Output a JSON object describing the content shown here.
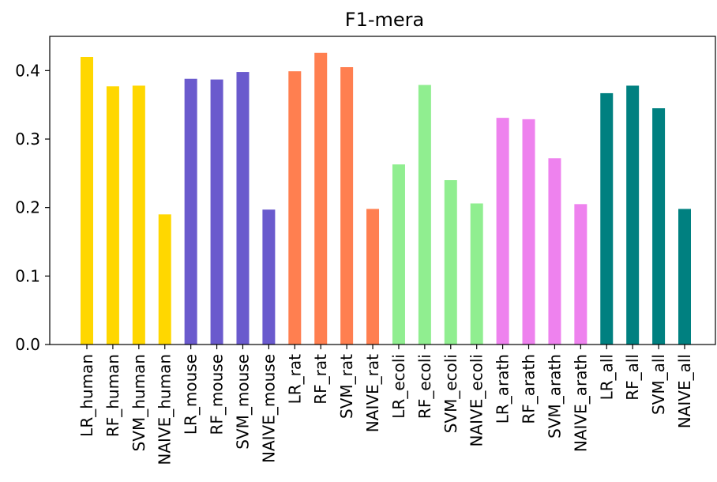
{
  "chart_data": {
    "type": "bar",
    "title": "F1-mera",
    "xlabel": "",
    "ylabel": "",
    "ylim": [
      0,
      0.45
    ],
    "yticks": [
      "0.0",
      "0.1",
      "0.2",
      "0.3",
      "0.4"
    ],
    "ytick_values": [
      0.0,
      0.1,
      0.2,
      0.3,
      0.4
    ],
    "grid": false,
    "categories": [
      "LR_human",
      "RF_human",
      "SVM_human",
      "NAIVE_human",
      "LR_mouse",
      "RF_mouse",
      "SVM_mouse",
      "NAIVE_mouse",
      "LR_rat",
      "RF_rat",
      "SVM_rat",
      "NAIVE_rat",
      "LR_ecoli",
      "RF_ecoli",
      "SVM_ecoli",
      "NAIVE_ecoli",
      "LR_arath",
      "RF_arath",
      "SVM_arath",
      "NAIVE_arath",
      "LR_all",
      "RF_all",
      "SVM_all",
      "NAIVE_all"
    ],
    "values": [
      0.42,
      0.377,
      0.378,
      0.19,
      0.388,
      0.387,
      0.398,
      0.197,
      0.399,
      0.426,
      0.405,
      0.198,
      0.263,
      0.379,
      0.24,
      0.206,
      0.331,
      0.329,
      0.272,
      0.205,
      0.367,
      0.378,
      0.345,
      0.198
    ],
    "colors": [
      "#ffd700",
      "#ffd700",
      "#ffd700",
      "#ffd700",
      "#6a5acd",
      "#6a5acd",
      "#6a5acd",
      "#6a5acd",
      "#ff7f50",
      "#ff7f50",
      "#ff7f50",
      "#ff7f50",
      "#90ee90",
      "#90ee90",
      "#90ee90",
      "#90ee90",
      "#ee82ee",
      "#ee82ee",
      "#ee82ee",
      "#ee82ee",
      "#008080",
      "#008080",
      "#008080",
      "#008080"
    ]
  }
}
